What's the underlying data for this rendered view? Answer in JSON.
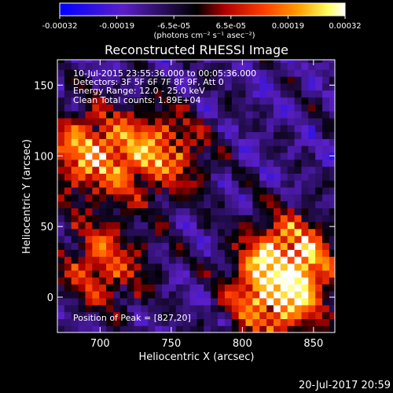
{
  "chart_data": {
    "type": "heatmap",
    "title": "Reconstructed RHESSI Image",
    "xlabel": "Heliocentric X (arcsec)",
    "ylabel": "Heliocentric Y (arcsec)",
    "xlim": [
      670,
      865
    ],
    "ylim": [
      -25,
      168
    ],
    "xticks": [
      700,
      750,
      800,
      850
    ],
    "yticks": [
      0,
      50,
      100,
      150
    ],
    "colorbar": {
      "unit_label": "(photons cm⁻² s⁻¹ asec⁻²)",
      "min": -0.00032,
      "max": 0.00032,
      "ticks": [
        "-0.00032",
        "-0.00019",
        "-6.5e-05",
        "6.5e-05",
        "0.00019",
        "0.00032"
      ],
      "colormap_stops": [
        "#0000ff",
        "#5a1fc8",
        "#000000",
        "#b00000",
        "#ff4000",
        "#ffa000",
        "#ffff60",
        "#ffffff"
      ]
    },
    "annotations": [
      "10-Jul-2015 23:55:36.000 to 00:05:36.000",
      "Detectors: 3F 5F 6F 7F 8F 9F, Att 0",
      "Energy Range: 12.0 - 25.0 keV",
      "Clean     Total counts: 1.89E+04"
    ],
    "peak_label": "Position of Peak = [827,20]",
    "peak": [
      827,
      20
    ],
    "bright_regions": [
      {
        "x": 690,
        "y": 100,
        "value": 0.00026
      },
      {
        "x": 740,
        "y": 100,
        "value": 0.00022
      },
      {
        "x": 830,
        "y": 25,
        "value": 0.00032
      },
      {
        "x": 820,
        "y": -5,
        "value": 0.00025
      },
      {
        "x": 700,
        "y": 20,
        "value": 0.00018
      }
    ],
    "grid": false
  },
  "timestamp": "20-Jul-2017 20:59"
}
